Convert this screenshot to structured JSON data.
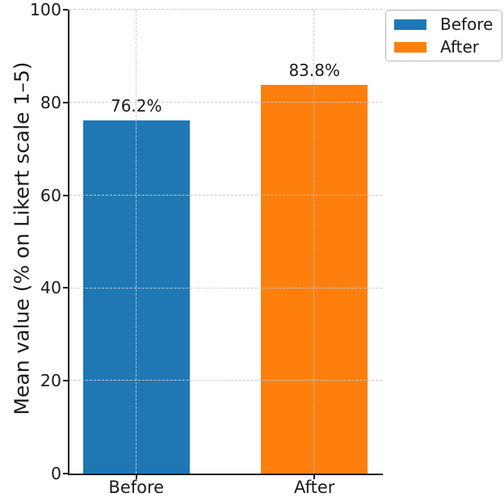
{
  "chart_data": {
    "type": "bar",
    "title": "",
    "xlabel": "",
    "ylabel": "Mean value (% on Likert scale 1–5)",
    "categories": [
      "Before",
      "After"
    ],
    "values": [
      76.2,
      83.8
    ],
    "bar_labels": [
      "76.2%",
      "83.8%"
    ],
    "bar_colors": [
      "#1f77b4",
      "#ff7f0e"
    ],
    "ylim": [
      0,
      100
    ],
    "yticks": [
      0,
      20,
      40,
      60,
      80,
      100
    ],
    "ytick_labels": [
      "0",
      "20",
      "40",
      "60",
      "80",
      "100"
    ],
    "xlim": [
      -0.38,
      1.38
    ],
    "bar_width_data": 0.6,
    "grid": {
      "horizontal": true,
      "vertical": true,
      "style": "dashed",
      "color": "#c9c9c9",
      "above_bars": true
    },
    "legend": {
      "position": "upper right",
      "entries": [
        {
          "label": "Before",
          "color": "#1f77b4"
        },
        {
          "label": "After",
          "color": "#ff7f0e"
        }
      ]
    }
  },
  "colors": {
    "background": "#ffffff",
    "axis": "#1a1a1a",
    "text": "#1a1a1a",
    "grid": "#c9c9c9",
    "legend_border": "#b4b4b4"
  }
}
